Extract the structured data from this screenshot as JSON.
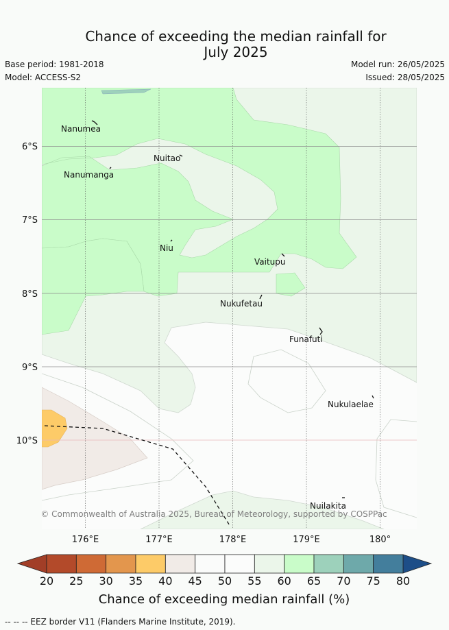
{
  "title": {
    "line1": "Chance of exceeding the median rainfall for",
    "line2": "July 2025"
  },
  "meta": {
    "base_period": "Base period: 1981-2018",
    "model": "Model: ACCESS-S2",
    "model_run": "Model run: 26/05/2025",
    "issued": "Issued: 28/05/2025"
  },
  "map": {
    "lat_labels": [
      "6°S",
      "7°S",
      "8°S",
      "9°S",
      "10°S"
    ],
    "lon_labels": [
      "176°E",
      "177°E",
      "178°E",
      "179°E",
      "180°"
    ],
    "islands": [
      "Nanumea",
      "Nuitao",
      "Nanumanga",
      "Niu",
      "Vaitupu",
      "Nukufetau",
      "Funafuti",
      "Nukulaelae",
      "Nuilakita"
    ],
    "copyright": "© Commonwealth of Australia 2025, Bureau of Meteorology, supported by COSPPac"
  },
  "colorbar": {
    "ticks": [
      "20",
      "25",
      "30",
      "35",
      "40",
      "45",
      "50",
      "55",
      "60",
      "65",
      "70",
      "75",
      "80"
    ],
    "colors": [
      "#b34a2a",
      "#cf6a35",
      "#e3964d",
      "#fdcb68",
      "#f1ebe7",
      "#fafbfa",
      "#fbfcfb",
      "#ebf6ea",
      "#c9fcc9",
      "#9dd1bb",
      "#6ea9aa",
      "#437e9c"
    ],
    "low_color": "#a23e27",
    "high_color": "#1d4e88",
    "label": "Chance of exceeding median rainfall (%)"
  },
  "footer": "--  --  -- EEZ border V11 (Flanders Marine Institute, 2019)."
}
